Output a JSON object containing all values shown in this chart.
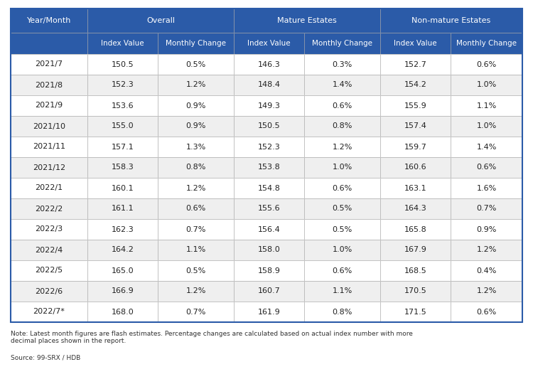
{
  "col_groups": [
    "Year/Month",
    "Overall",
    "Mature Estates",
    "Non-mature Estates"
  ],
  "sub_headers": [
    "Index Value",
    "Monthly Change",
    "Index Value",
    "Monthly Change",
    "Index Value",
    "Monthly Change"
  ],
  "rows": [
    [
      "2021/7",
      "150.5",
      "0.5%",
      "146.3",
      "0.3%",
      "152.7",
      "0.6%"
    ],
    [
      "2021/8",
      "152.3",
      "1.2%",
      "148.4",
      "1.4%",
      "154.2",
      "1.0%"
    ],
    [
      "2021/9",
      "153.6",
      "0.9%",
      "149.3",
      "0.6%",
      "155.9",
      "1.1%"
    ],
    [
      "2021/10",
      "155.0",
      "0.9%",
      "150.5",
      "0.8%",
      "157.4",
      "1.0%"
    ],
    [
      "2021/11",
      "157.1",
      "1.3%",
      "152.3",
      "1.2%",
      "159.7",
      "1.4%"
    ],
    [
      "2021/12",
      "158.3",
      "0.8%",
      "153.8",
      "1.0%",
      "160.6",
      "0.6%"
    ],
    [
      "2022/1",
      "160.1",
      "1.2%",
      "154.8",
      "0.6%",
      "163.1",
      "1.6%"
    ],
    [
      "2022/2",
      "161.1",
      "0.6%",
      "155.6",
      "0.5%",
      "164.3",
      "0.7%"
    ],
    [
      "2022/3",
      "162.3",
      "0.7%",
      "156.4",
      "0.5%",
      "165.8",
      "0.9%"
    ],
    [
      "2022/4",
      "164.2",
      "1.1%",
      "158.0",
      "1.0%",
      "167.9",
      "1.2%"
    ],
    [
      "2022/5",
      "165.0",
      "0.5%",
      "158.9",
      "0.6%",
      "168.5",
      "0.4%"
    ],
    [
      "2022/6",
      "166.9",
      "1.2%",
      "160.7",
      "1.1%",
      "170.5",
      "1.2%"
    ],
    [
      "2022/7*",
      "168.0",
      "0.7%",
      "161.9",
      "0.8%",
      "171.5",
      "0.6%"
    ]
  ],
  "note": "Note: Latest month figures are flash estimates. Percentage changes are calculated based on actual index number with more\ndecimal places shown in the report.",
  "source": "Source: 99-SRX / HDB",
  "header_bg": "#2B5BA8",
  "header_text": "#ffffff",
  "row_bg_even": "#efefef",
  "row_bg_odd": "#ffffff",
  "border_color": "#aaaaaa",
  "text_color": "#222222",
  "outer_border": "#2B5BA8",
  "fig_width": 7.5,
  "fig_height": 5.47,
  "dpi": 100
}
